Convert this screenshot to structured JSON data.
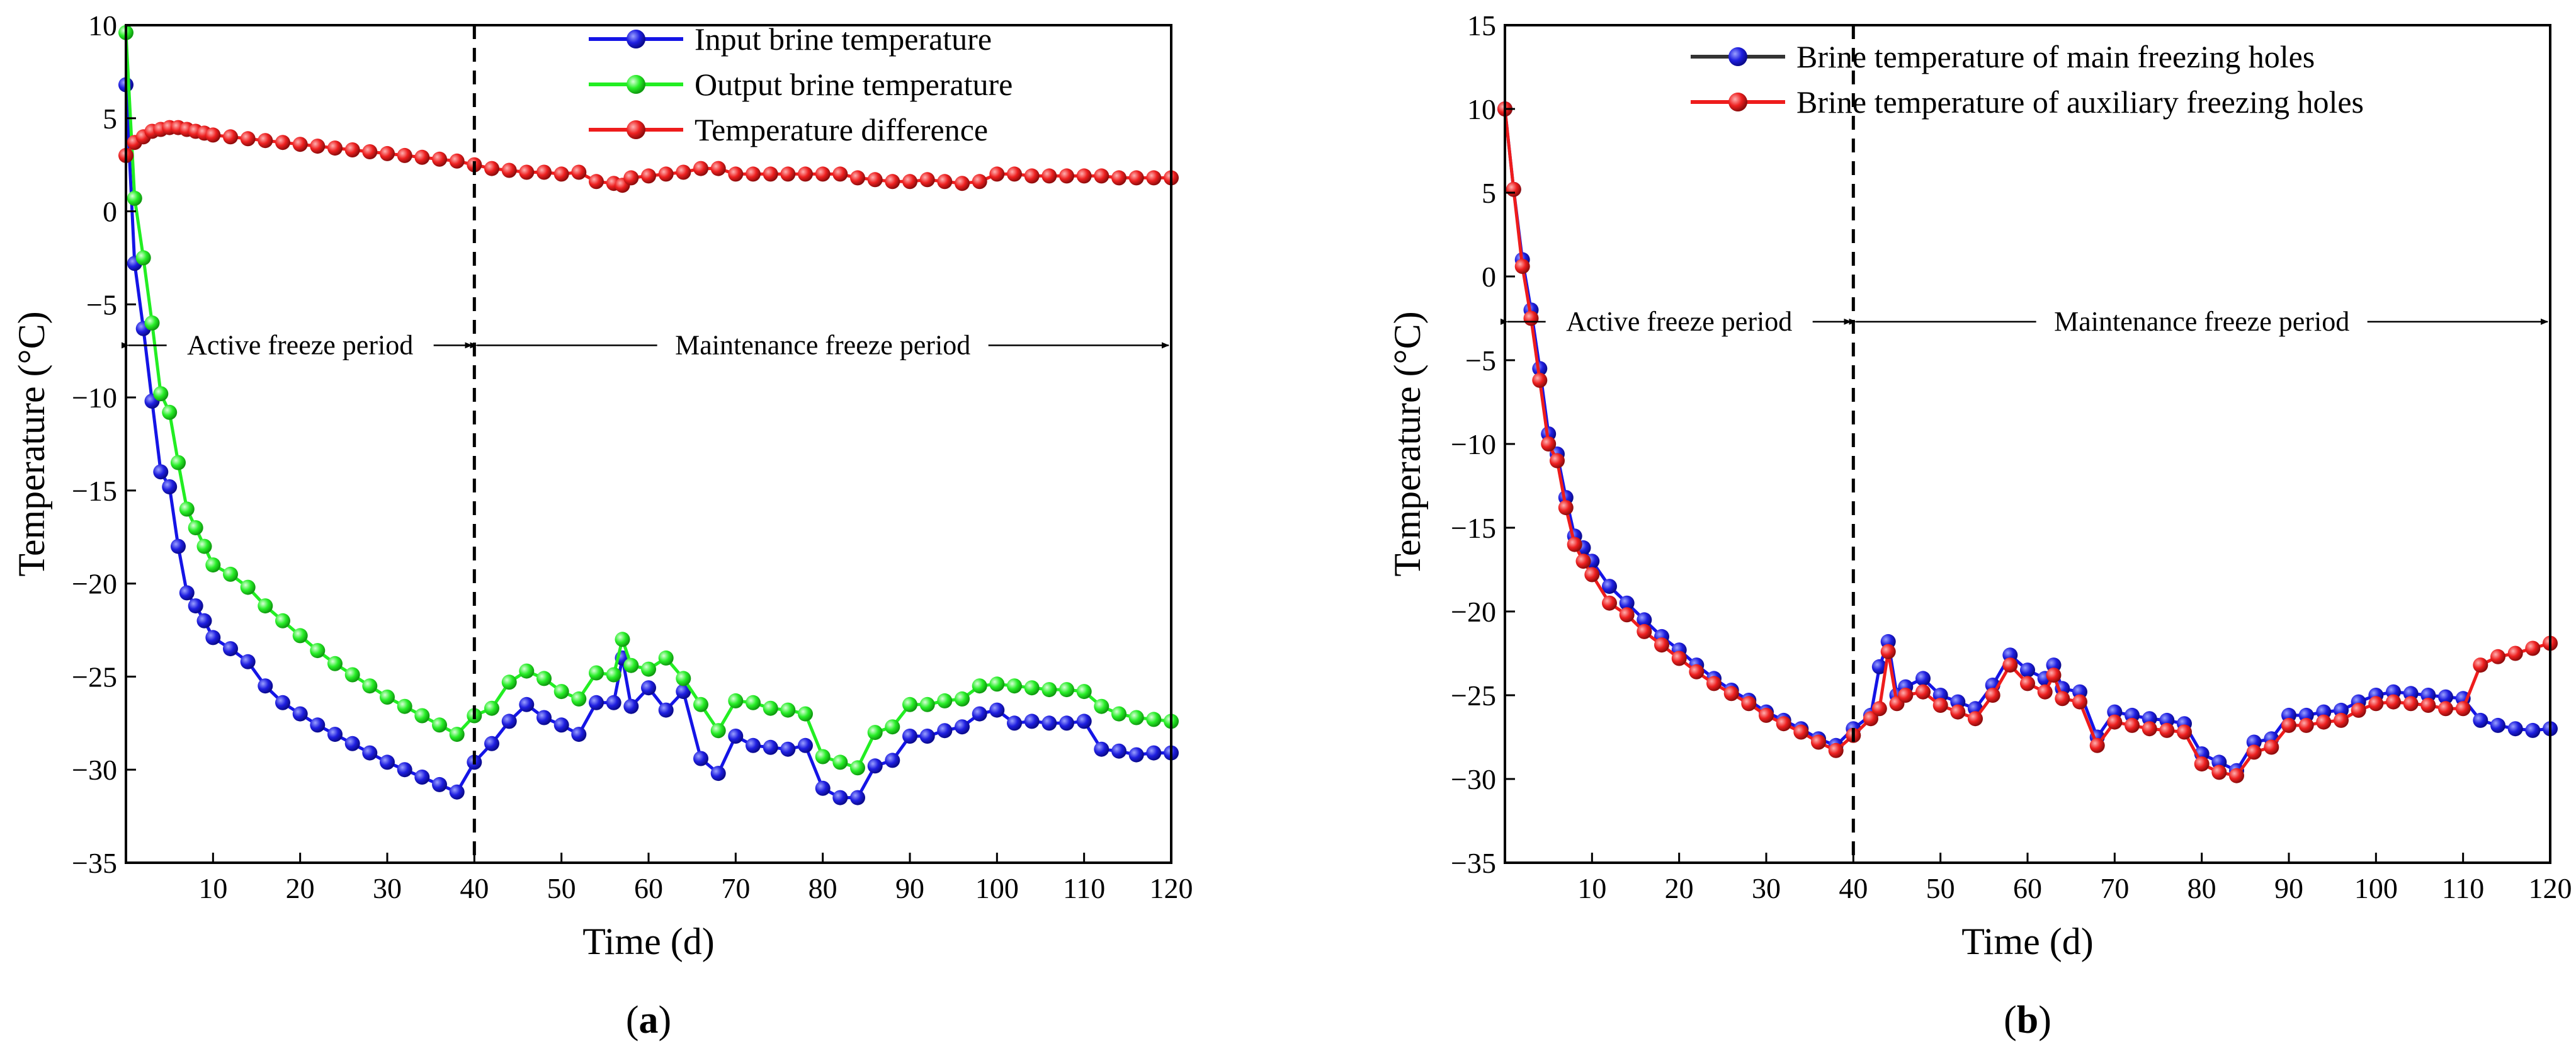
{
  "chart_data": [
    {
      "panel": "(a)",
      "panel_letter": "a",
      "type": "line",
      "xlabel": "Time (d)",
      "ylabel": "Temperature (°C)",
      "xlim": [
        0,
        120
      ],
      "ylim": [
        -35,
        10
      ],
      "xticks": [
        10,
        20,
        30,
        40,
        50,
        60,
        70,
        80,
        90,
        100,
        110,
        120
      ],
      "yticks": [
        10,
        5,
        0,
        -5,
        -10,
        -15,
        -20,
        -25,
        -30,
        -35
      ],
      "divider_x": 40,
      "annotations": [
        {
          "text": "Active freeze period",
          "x_from": 0,
          "x_to": 40,
          "y": -7.2
        },
        {
          "text": "Maintenance freeze period",
          "x_from": 40,
          "x_to": 120,
          "y": -7.2
        }
      ],
      "legend_position": "top-right",
      "series": [
        {
          "name": "Input brine temperature",
          "color": "#1414e6",
          "x": [
            0,
            1,
            2,
            3,
            4,
            5,
            6,
            7,
            8,
            9,
            10,
            12,
            14,
            16,
            18,
            20,
            22,
            24,
            26,
            28,
            30,
            32,
            34,
            36,
            38,
            40,
            42,
            44,
            46,
            48,
            50,
            52,
            54,
            56,
            57,
            58,
            60,
            62,
            64,
            66,
            68,
            70,
            72,
            74,
            76,
            78,
            80,
            82,
            84,
            86,
            88,
            90,
            92,
            94,
            96,
            98,
            100,
            102,
            104,
            106,
            108,
            110,
            112,
            114,
            116,
            118,
            120
          ],
          "y": [
            6.8,
            -2.8,
            -6.3,
            -10.2,
            -14.0,
            -14.8,
            -18.0,
            -20.5,
            -21.2,
            -22.0,
            -22.9,
            -23.5,
            -24.2,
            -25.5,
            -26.4,
            -27.0,
            -27.6,
            -28.1,
            -28.6,
            -29.1,
            -29.6,
            -30.0,
            -30.4,
            -30.8,
            -31.2,
            -29.6,
            -28.6,
            -27.4,
            -26.5,
            -27.2,
            -27.6,
            -28.1,
            -26.4,
            -26.4,
            -24.0,
            -26.6,
            -25.6,
            -26.8,
            -25.8,
            -29.4,
            -30.2,
            -28.2,
            -28.7,
            -28.8,
            -28.9,
            -28.7,
            -31.0,
            -31.5,
            -31.5,
            -29.8,
            -29.5,
            -28.2,
            -28.2,
            -27.9,
            -27.7,
            -27.0,
            -26.8,
            -27.5,
            -27.4,
            -27.5,
            -27.5,
            -27.4,
            -28.9,
            -29.0,
            -29.2,
            -29.1,
            -29.1
          ]
        },
        {
          "name": "Output brine temperature",
          "color": "#22ee22",
          "x": [
            0,
            1,
            2,
            3,
            4,
            5,
            6,
            7,
            8,
            9,
            10,
            12,
            14,
            16,
            18,
            20,
            22,
            24,
            26,
            28,
            30,
            32,
            34,
            36,
            38,
            40,
            42,
            44,
            46,
            48,
            50,
            52,
            54,
            56,
            57,
            58,
            60,
            62,
            64,
            66,
            68,
            70,
            72,
            74,
            76,
            78,
            80,
            82,
            84,
            86,
            88,
            90,
            92,
            94,
            96,
            98,
            100,
            102,
            104,
            106,
            108,
            110,
            112,
            114,
            116,
            118,
            120
          ],
          "y": [
            9.6,
            0.7,
            -2.5,
            -6.0,
            -9.8,
            -10.8,
            -13.5,
            -16.0,
            -17.0,
            -18.0,
            -19.0,
            -19.5,
            -20.2,
            -21.2,
            -22.0,
            -22.8,
            -23.6,
            -24.3,
            -24.9,
            -25.5,
            -26.1,
            -26.6,
            -27.1,
            -27.6,
            -28.1,
            -27.1,
            -26.7,
            -25.3,
            -24.7,
            -25.1,
            -25.8,
            -26.2,
            -24.8,
            -24.9,
            -23.0,
            -24.4,
            -24.6,
            -24.0,
            -25.1,
            -26.5,
            -27.9,
            -26.3,
            -26.4,
            -26.7,
            -26.8,
            -27.0,
            -29.3,
            -29.6,
            -29.9,
            -28.0,
            -27.7,
            -26.5,
            -26.5,
            -26.3,
            -26.2,
            -25.5,
            -25.4,
            -25.5,
            -25.6,
            -25.7,
            -25.7,
            -25.8,
            -26.6,
            -27.0,
            -27.2,
            -27.3,
            -27.4
          ]
        },
        {
          "name": "Temperature difference",
          "color": "#ee1c1c",
          "x": [
            0,
            1,
            2,
            3,
            4,
            5,
            6,
            7,
            8,
            9,
            10,
            12,
            14,
            16,
            18,
            20,
            22,
            24,
            26,
            28,
            30,
            32,
            34,
            36,
            38,
            40,
            42,
            44,
            46,
            48,
            50,
            52,
            54,
            56,
            57,
            58,
            60,
            62,
            64,
            66,
            68,
            70,
            72,
            74,
            76,
            78,
            80,
            82,
            84,
            86,
            88,
            90,
            92,
            94,
            96,
            98,
            100,
            102,
            104,
            106,
            108,
            110,
            112,
            114,
            116,
            118,
            120
          ],
          "y": [
            3.0,
            3.7,
            4.0,
            4.3,
            4.4,
            4.5,
            4.5,
            4.4,
            4.3,
            4.2,
            4.1,
            4.0,
            3.9,
            3.8,
            3.7,
            3.6,
            3.5,
            3.4,
            3.3,
            3.2,
            3.1,
            3.0,
            2.9,
            2.8,
            2.7,
            2.5,
            2.3,
            2.2,
            2.1,
            2.1,
            2.0,
            2.1,
            1.6,
            1.5,
            1.4,
            1.8,
            1.9,
            2.0,
            2.1,
            2.3,
            2.3,
            2.0,
            2.0,
            2.0,
            2.0,
            2.0,
            2.0,
            2.0,
            1.8,
            1.7,
            1.6,
            1.6,
            1.7,
            1.6,
            1.5,
            1.6,
            2.0,
            2.0,
            1.9,
            1.9,
            1.9,
            1.9,
            1.9,
            1.8,
            1.8,
            1.8,
            1.8
          ]
        }
      ]
    },
    {
      "panel": "(b)",
      "panel_letter": "b",
      "type": "line",
      "xlabel": "Time (d)",
      "ylabel": "Temperature (°C)",
      "xlim": [
        0,
        120
      ],
      "ylim": [
        -35,
        15
      ],
      "xticks": [
        10,
        20,
        30,
        40,
        50,
        60,
        70,
        80,
        90,
        100,
        110,
        120
      ],
      "yticks": [
        15,
        10,
        5,
        0,
        -5,
        -10,
        -15,
        -20,
        -25,
        -30,
        -35
      ],
      "divider_x": 40,
      "annotations": [
        {
          "text": "Active freeze period",
          "x_from": 0,
          "x_to": 40,
          "y": -2.7
        },
        {
          "text": "Maintenance freeze period",
          "x_from": 40,
          "x_to": 120,
          "y": -2.7
        }
      ],
      "legend_position": "top-right",
      "series": [
        {
          "name": "Brine temperature of main freezing holes",
          "color": "#1414e6",
          "x": [
            0,
            1,
            2,
            3,
            4,
            5,
            6,
            7,
            8,
            9,
            10,
            12,
            14,
            16,
            18,
            20,
            22,
            24,
            26,
            28,
            30,
            32,
            34,
            36,
            38,
            40,
            42,
            43,
            44,
            45,
            46,
            48,
            50,
            52,
            54,
            56,
            58,
            60,
            62,
            63,
            64,
            66,
            68,
            70,
            72,
            74,
            76,
            78,
            80,
            82,
            84,
            86,
            88,
            90,
            92,
            94,
            96,
            98,
            100,
            102,
            104,
            106,
            108,
            110,
            112,
            114,
            116,
            118,
            120
          ],
          "y": [
            10.0,
            5.2,
            1.0,
            -2.0,
            -5.5,
            -9.4,
            -10.6,
            -13.2,
            -15.5,
            -16.2,
            -17.0,
            -18.5,
            -19.5,
            -20.5,
            -21.5,
            -22.3,
            -23.2,
            -24.0,
            -24.7,
            -25.3,
            -26.0,
            -26.5,
            -27.0,
            -27.6,
            -28.0,
            -27.0,
            -26.2,
            -23.3,
            -21.8,
            -25.0,
            -24.5,
            -24.0,
            -25.0,
            -25.4,
            -25.8,
            -24.4,
            -22.6,
            -23.5,
            -24.0,
            -23.2,
            -24.6,
            -24.8,
            -27.5,
            -26.0,
            -26.2,
            -26.4,
            -26.5,
            -26.7,
            -28.5,
            -29.0,
            -29.5,
            -27.8,
            -27.6,
            -26.2,
            -26.2,
            -26.0,
            -25.9,
            -25.4,
            -25.0,
            -24.8,
            -24.9,
            -25.0,
            -25.1,
            -25.2,
            -26.5,
            -26.8,
            -27.0,
            -27.1,
            -27.0
          ]
        },
        {
          "name": "Brine temperature of auxiliary freezing holes",
          "color": "#ee1c1c",
          "x": [
            0,
            1,
            2,
            3,
            4,
            5,
            6,
            7,
            8,
            9,
            10,
            12,
            14,
            16,
            18,
            20,
            22,
            24,
            26,
            28,
            30,
            32,
            34,
            36,
            38,
            40,
            42,
            43,
            44,
            45,
            46,
            48,
            50,
            52,
            54,
            56,
            58,
            60,
            62,
            63,
            64,
            66,
            68,
            70,
            72,
            74,
            76,
            78,
            80,
            82,
            84,
            86,
            88,
            90,
            92,
            94,
            96,
            98,
            100,
            102,
            104,
            106,
            108,
            110,
            112,
            114,
            116,
            118,
            120
          ],
          "y": [
            10.0,
            5.2,
            0.6,
            -2.5,
            -6.2,
            -10.0,
            -11.0,
            -13.8,
            -16.0,
            -17.0,
            -17.8,
            -19.5,
            -20.2,
            -21.2,
            -22.0,
            -22.8,
            -23.6,
            -24.3,
            -24.9,
            -25.5,
            -26.2,
            -26.7,
            -27.2,
            -27.8,
            -28.3,
            -27.4,
            -26.4,
            -25.8,
            -22.4,
            -25.5,
            -25.0,
            -24.8,
            -25.6,
            -26.0,
            -26.4,
            -25.0,
            -23.2,
            -24.3,
            -24.8,
            -23.8,
            -25.2,
            -25.4,
            -28.0,
            -26.6,
            -26.8,
            -27.0,
            -27.1,
            -27.2,
            -29.1,
            -29.6,
            -29.8,
            -28.4,
            -28.1,
            -26.8,
            -26.8,
            -26.6,
            -26.5,
            -25.9,
            -25.5,
            -25.4,
            -25.5,
            -25.6,
            -25.8,
            -25.8,
            -23.2,
            -22.7,
            -22.5,
            -22.2,
            -21.9
          ]
        }
      ]
    }
  ]
}
